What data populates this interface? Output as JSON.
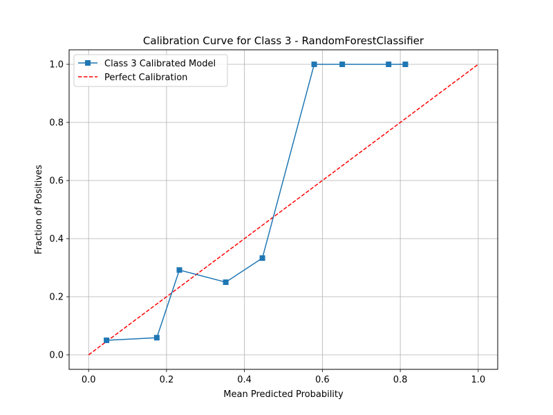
{
  "chart_data": {
    "type": "line",
    "title": "Calibration Curve for Class 3 - RandomForestClassifier",
    "xlabel": "Mean Predicted Probability",
    "ylabel": "Fraction of Positives",
    "xlim": [
      -0.05,
      1.05
    ],
    "ylim": [
      -0.05,
      1.05
    ],
    "grid": true,
    "legend_position": "top-left",
    "x_ticks": [
      "0.0",
      "0.2",
      "0.4",
      "0.6",
      "0.8",
      "1.0"
    ],
    "y_ticks": [
      "0.0",
      "0.2",
      "0.4",
      "0.6",
      "0.8",
      "1.0"
    ],
    "series": [
      {
        "name": "Class 3 Calibrated Model",
        "color": "#1f77b4",
        "marker": "square",
        "line_style": "solid",
        "x": [
          0.046,
          0.175,
          0.233,
          0.352,
          0.446,
          0.579,
          0.651,
          0.77,
          0.813
        ],
        "y": [
          0.05,
          0.059,
          0.292,
          0.25,
          0.333,
          1.0,
          1.0,
          1.0,
          1.0
        ]
      },
      {
        "name": "Perfect Calibration",
        "color": "#ff0000",
        "marker": "none",
        "line_style": "dashed",
        "x": [
          0,
          1
        ],
        "y": [
          0,
          1
        ]
      }
    ]
  }
}
